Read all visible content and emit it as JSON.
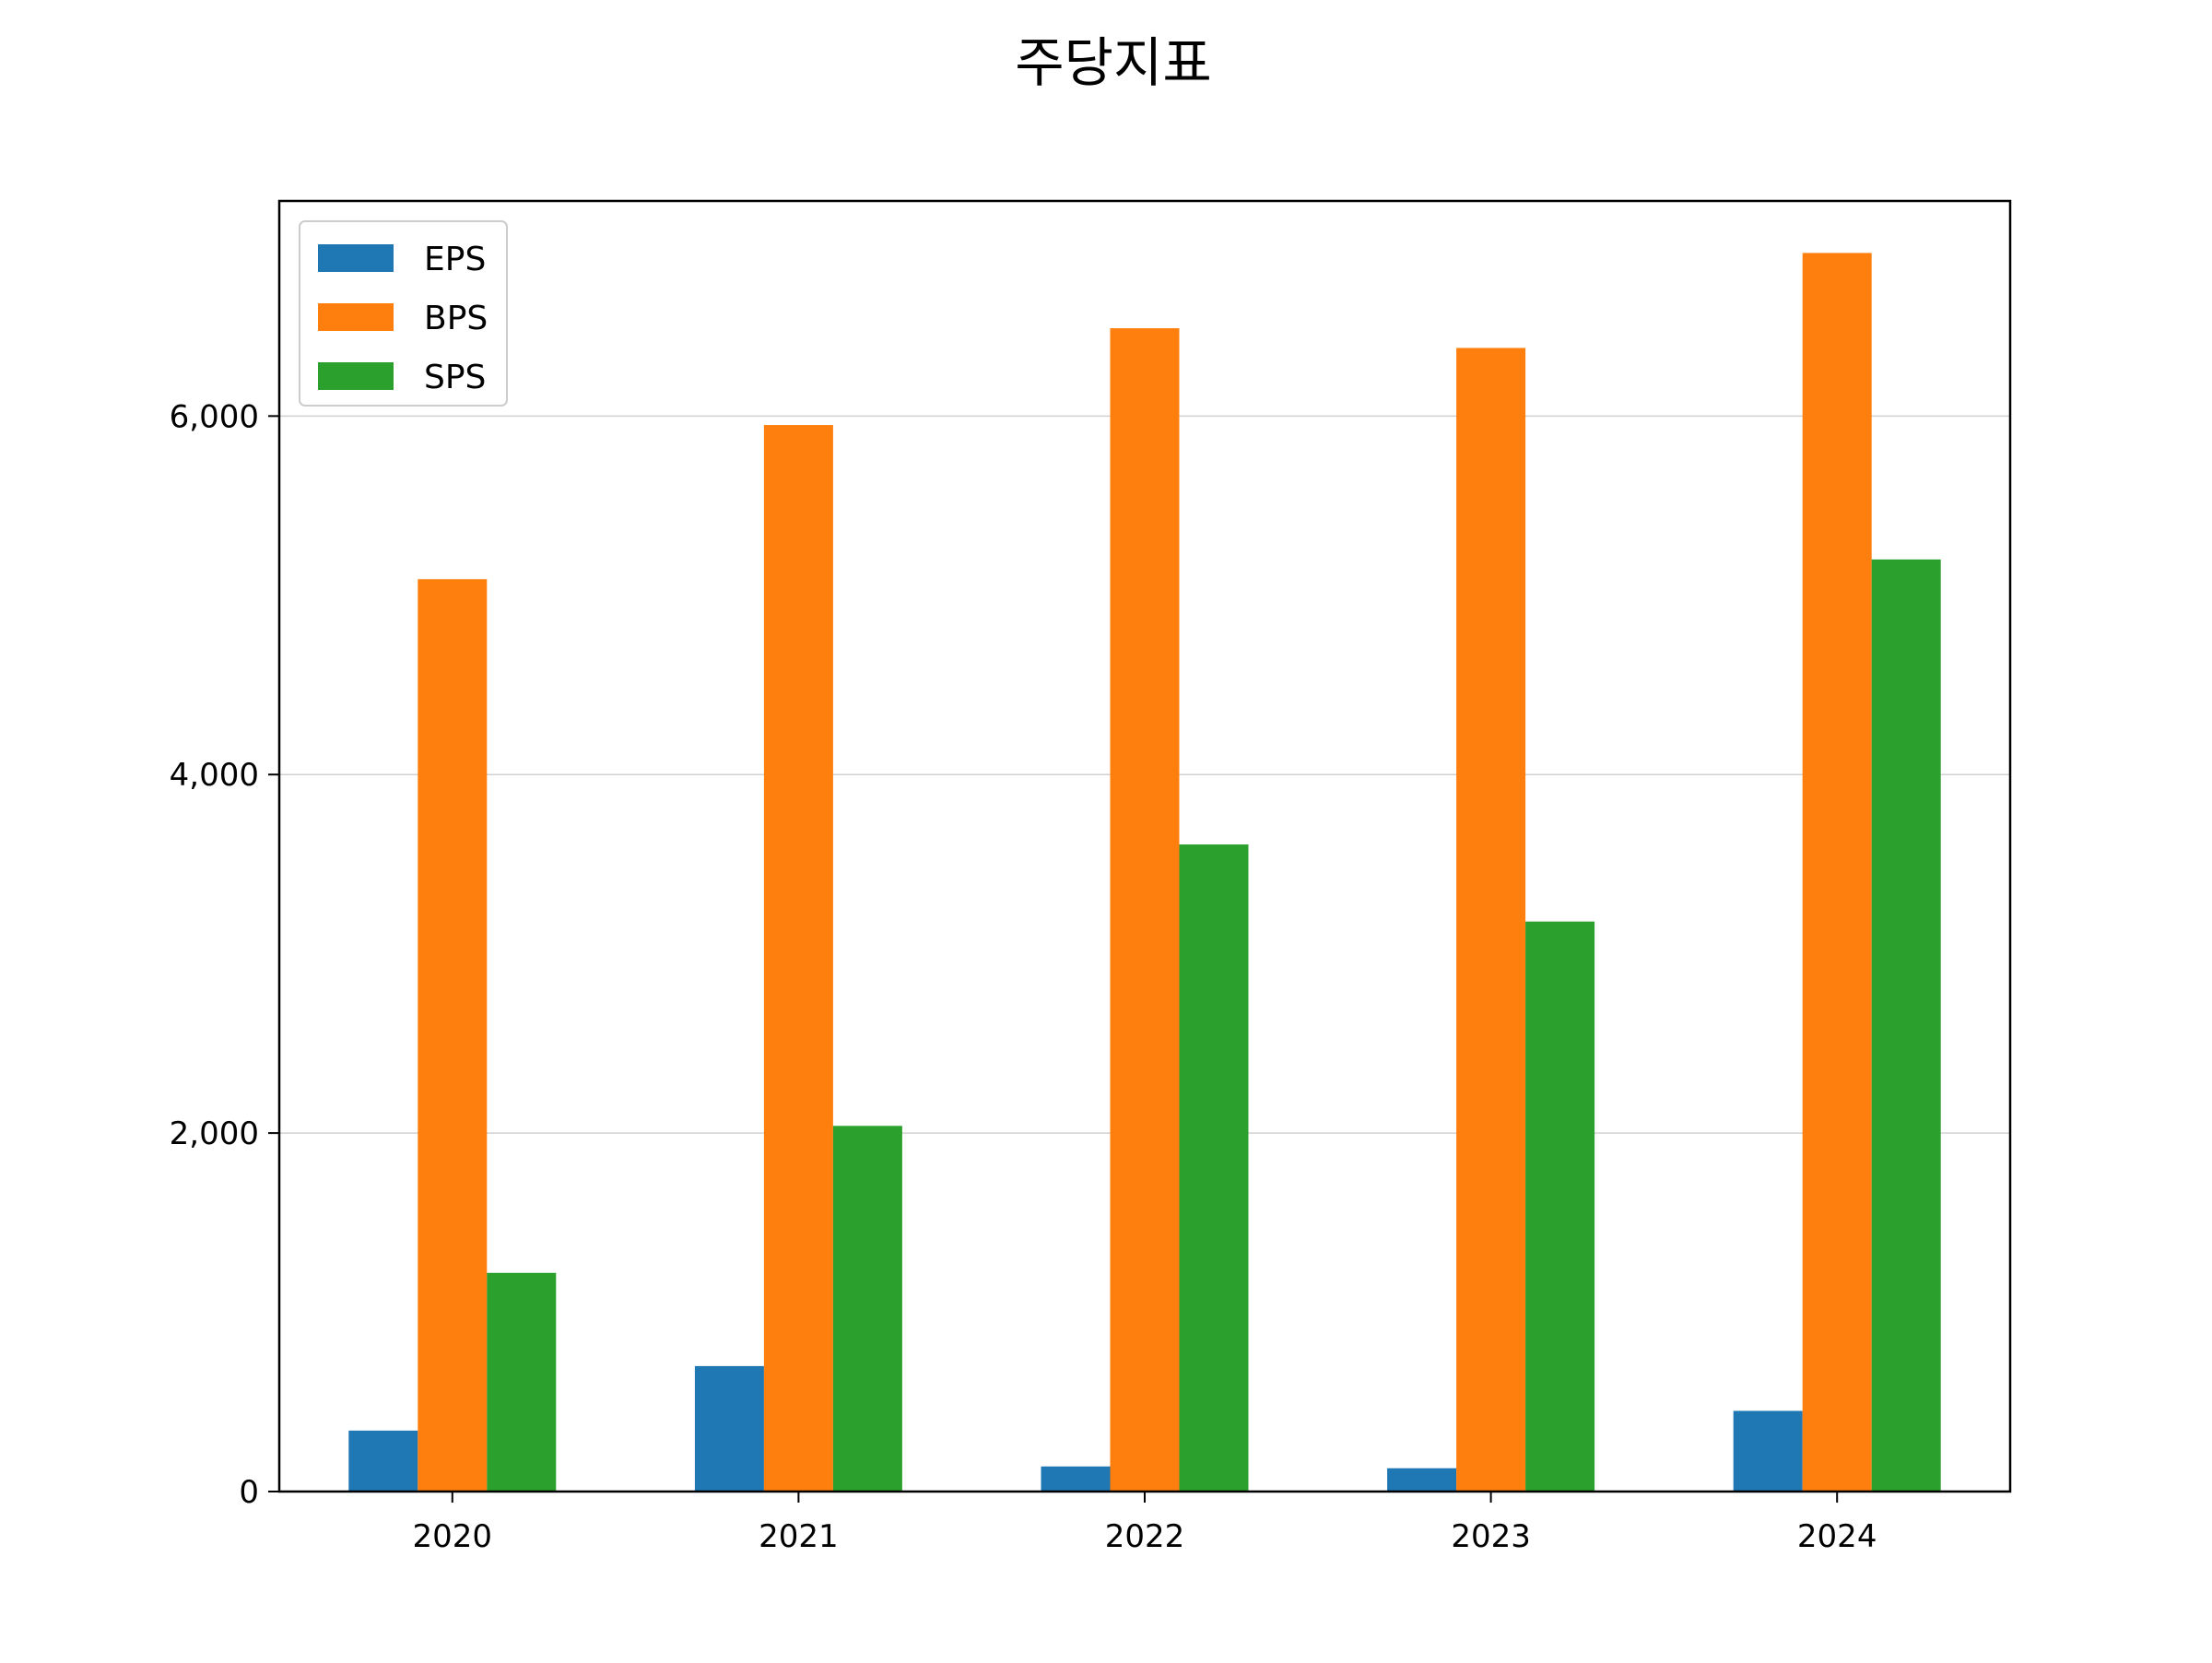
{
  "chart_data": {
    "type": "bar",
    "title": "주당지표",
    "xlabel": "",
    "ylabel": "",
    "categories": [
      "2020",
      "2021",
      "2022",
      "2023",
      "2024"
    ],
    "series": [
      {
        "name": "EPS",
        "color": "#1f77b4",
        "values": [
          340,
          700,
          140,
          130,
          450
        ]
      },
      {
        "name": "BPS",
        "color": "#ff7f0e",
        "values": [
          5090,
          5950,
          6490,
          6380,
          6910
        ]
      },
      {
        "name": "SPS",
        "color": "#2ca02c",
        "values": [
          1220,
          2040,
          3610,
          3180,
          5200
        ]
      }
    ],
    "ylim": [
      0,
      7200
    ],
    "yticks": [
      0,
      2000,
      4000,
      6000
    ],
    "ytick_labels": [
      "0",
      "2,000",
      "4,000",
      "6,000"
    ],
    "grid": "y",
    "legend": "top-left"
  }
}
